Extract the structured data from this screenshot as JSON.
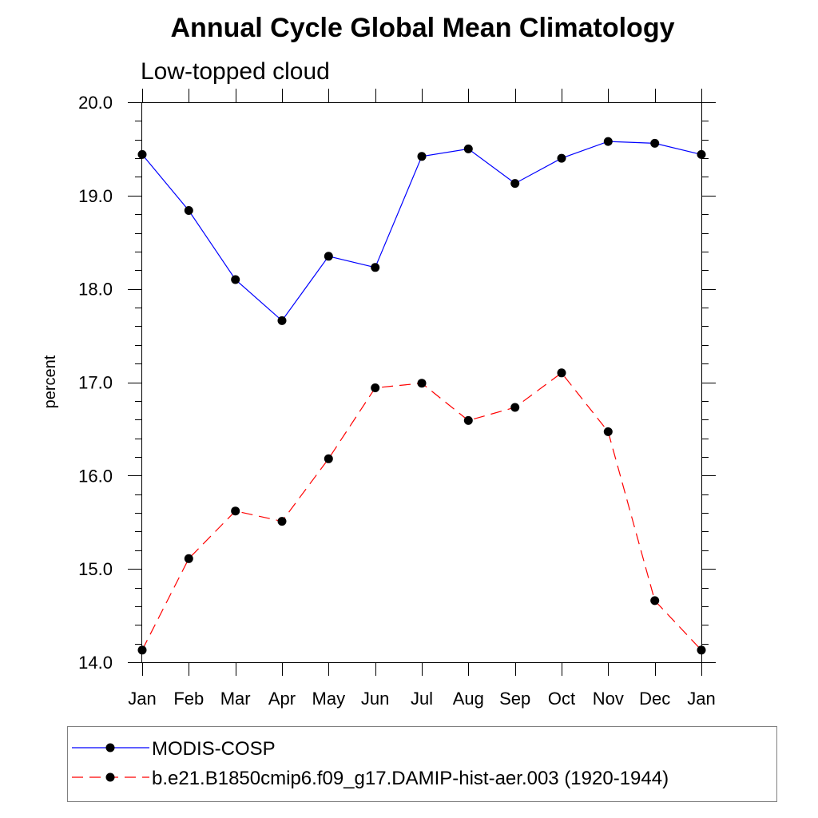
{
  "chart_data": {
    "type": "line",
    "title": "Annual Cycle Global Mean Climatology",
    "subtitle": "Low-topped cloud",
    "xlabel": "",
    "ylabel": "percent",
    "categories": [
      "Jan",
      "Feb",
      "Mar",
      "Apr",
      "May",
      "Jun",
      "Jul",
      "Aug",
      "Sep",
      "Oct",
      "Nov",
      "Dec",
      "Jan"
    ],
    "ylim": [
      14.0,
      20.0
    ],
    "yticks": [
      "14.0",
      "15.0",
      "16.0",
      "17.0",
      "18.0",
      "19.0",
      "20.0"
    ],
    "grid": false,
    "legend_position": "bottom",
    "series": [
      {
        "name": "MODIS-COSP",
        "color": "#0000ff",
        "line_style": "solid",
        "marker": "filled-circle",
        "values": [
          19.44,
          18.84,
          18.1,
          17.66,
          18.35,
          18.23,
          19.42,
          19.5,
          19.13,
          19.4,
          19.58,
          19.56,
          19.44
        ]
      },
      {
        "name": "b.e21.B1850cmip6.f09_g17.DAMIP-hist-aer.003 (1920-1944)",
        "color": "#ff0000",
        "line_style": "dashed",
        "marker": "filled-circle",
        "values": [
          14.13,
          15.11,
          15.62,
          15.51,
          16.18,
          16.94,
          16.99,
          16.59,
          16.73,
          17.1,
          16.47,
          14.66,
          14.13
        ]
      }
    ]
  }
}
